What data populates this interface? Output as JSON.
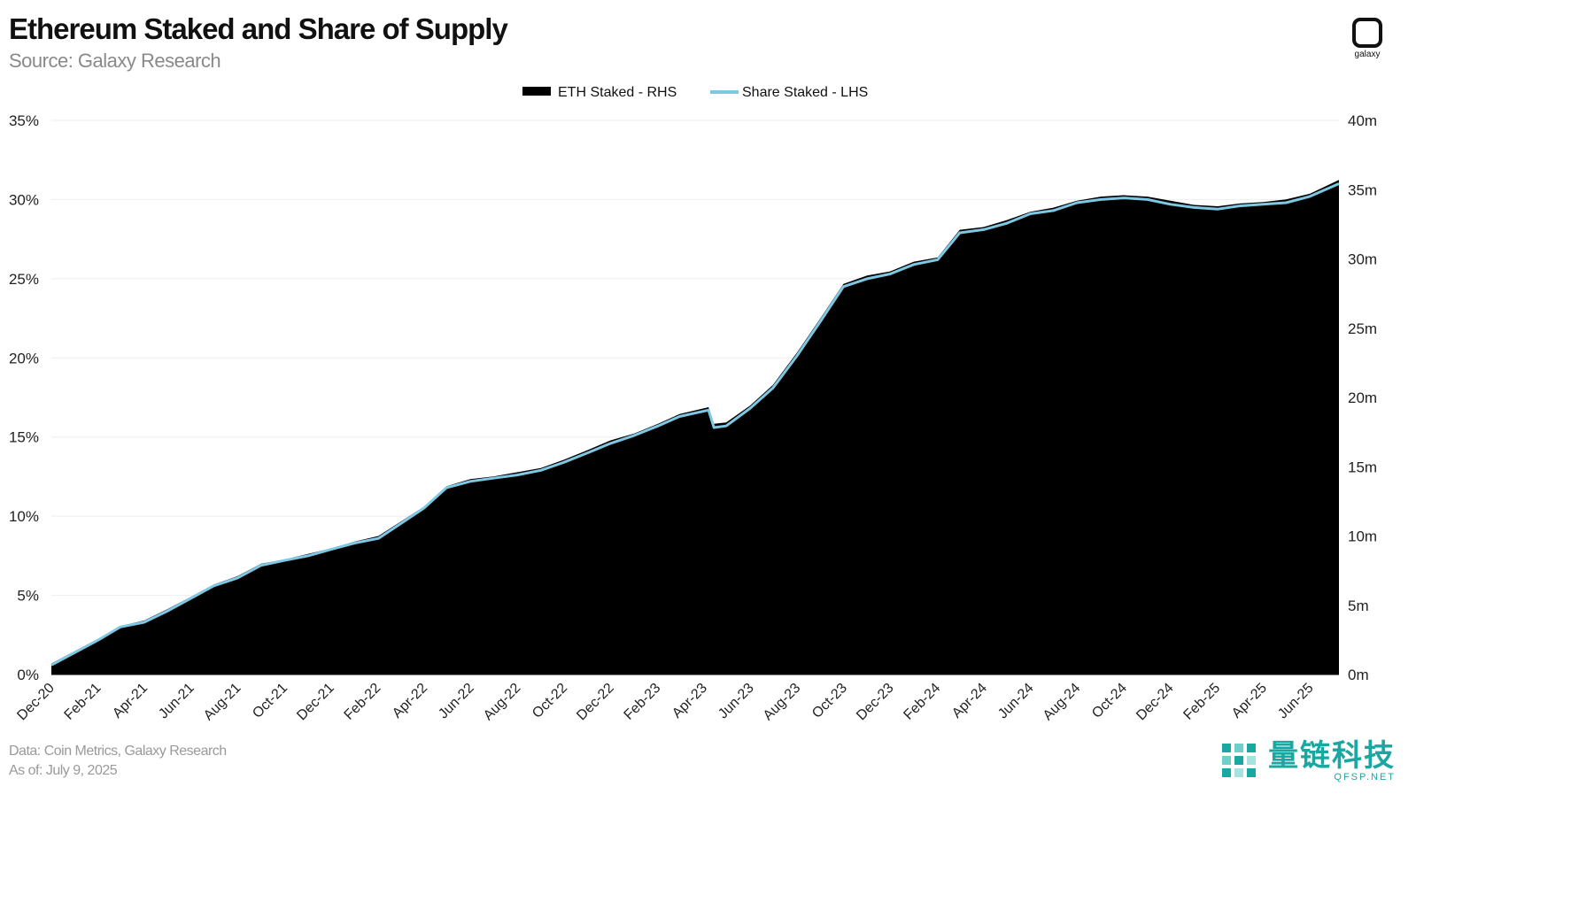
{
  "header": {
    "title": "Ethereum Staked and Share of Supply",
    "subtitle": "Source: Galaxy Research"
  },
  "logo": {
    "text": "galaxy"
  },
  "footer": {
    "data_source": "Data: Coin Metrics, Galaxy Research",
    "as_of": "As of: July 9, 2025"
  },
  "watermark": {
    "cn": "量链科技",
    "en": "QFSP.NET"
  },
  "chart_data": {
    "type": "area",
    "title": "Ethereum Staked and Share of Supply",
    "subtitle": "Source: Galaxy Research",
    "legend": {
      "placement": "top-center",
      "entries": [
        "ETH Staked - RHS",
        "Share Staked - LHS"
      ]
    },
    "grid": true,
    "x_tick_labels": [
      "Dec-20",
      "Feb-21",
      "Apr-21",
      "Jun-21",
      "Aug-21",
      "Oct-21",
      "Dec-21",
      "Feb-22",
      "Apr-22",
      "Jun-22",
      "Aug-22",
      "Oct-22",
      "Dec-22",
      "Feb-23",
      "Apr-23",
      "Jun-23",
      "Aug-23",
      "Oct-23",
      "Dec-23",
      "Feb-24",
      "Apr-24",
      "Jun-24",
      "Aug-24",
      "Oct-24",
      "Dec-24",
      "Feb-25",
      "Apr-25",
      "Jun-25"
    ],
    "y_left": {
      "ylim": [
        0,
        35
      ],
      "ticks": [
        "0%",
        "5%",
        "10%",
        "15%",
        "20%",
        "25%",
        "30%",
        "35%"
      ]
    },
    "y_right": {
      "ylim": [
        0,
        40
      ],
      "ticks": [
        "0m",
        "5m",
        "10m",
        "15m",
        "20m",
        "25m",
        "30m",
        "35m",
        "40m"
      ]
    },
    "x": [
      "2020-12-01",
      "2021-01-01",
      "2021-02-01",
      "2021-03-01",
      "2021-04-01",
      "2021-05-01",
      "2021-06-01",
      "2021-07-01",
      "2021-08-01",
      "2021-09-01",
      "2021-10-01",
      "2021-11-01",
      "2021-12-01",
      "2022-01-01",
      "2022-02-01",
      "2022-03-01",
      "2022-04-01",
      "2022-05-01",
      "2022-06-01",
      "2022-07-01",
      "2022-08-01",
      "2022-09-01",
      "2022-10-01",
      "2022-11-01",
      "2022-12-01",
      "2023-01-01",
      "2023-02-01",
      "2023-03-01",
      "2023-04-08",
      "2023-04-15",
      "2023-05-01",
      "2023-06-01",
      "2023-07-01",
      "2023-08-01",
      "2023-09-01",
      "2023-10-01",
      "2023-11-01",
      "2023-12-01",
      "2024-01-01",
      "2024-02-01",
      "2024-03-01",
      "2024-04-01",
      "2024-05-01",
      "2024-06-01",
      "2024-07-01",
      "2024-08-01",
      "2024-09-01",
      "2024-10-01",
      "2024-11-01",
      "2024-12-01",
      "2025-01-01",
      "2025-02-01",
      "2025-03-01",
      "2025-04-01",
      "2025-05-01",
      "2025-06-01",
      "2025-07-09"
    ],
    "series": [
      {
        "name": "ETH Staked - RHS",
        "axis": "right",
        "color": "#000000",
        "values": [
          0.8,
          1.7,
          2.6,
          3.5,
          3.9,
          4.7,
          5.6,
          6.5,
          7.1,
          8.0,
          8.3,
          8.7,
          9.1,
          9.6,
          10.0,
          11.0,
          12.1,
          13.6,
          14.1,
          14.3,
          14.6,
          14.9,
          15.5,
          16.2,
          16.9,
          17.4,
          18.1,
          18.8,
          19.3,
          18.1,
          18.2,
          19.4,
          20.9,
          23.2,
          25.7,
          28.2,
          28.8,
          29.1,
          29.8,
          30.1,
          32.1,
          32.3,
          32.8,
          33.4,
          33.7,
          34.2,
          34.5,
          34.6,
          34.5,
          34.2,
          33.9,
          33.8,
          34.0,
          34.1,
          34.3,
          34.7,
          35.7
        ]
      },
      {
        "name": "Share Staked - LHS",
        "axis": "left",
        "color": "#7ec8e3",
        "values": [
          0.6,
          1.4,
          2.2,
          3.0,
          3.3,
          4.0,
          4.8,
          5.6,
          6.1,
          6.9,
          7.2,
          7.5,
          7.9,
          8.3,
          8.6,
          9.5,
          10.5,
          11.8,
          12.2,
          12.4,
          12.6,
          12.9,
          13.4,
          14.0,
          14.6,
          15.1,
          15.7,
          16.3,
          16.7,
          15.6,
          15.7,
          16.8,
          18.1,
          20.1,
          22.3,
          24.5,
          25.0,
          25.3,
          25.9,
          26.2,
          27.9,
          28.1,
          28.5,
          29.1,
          29.3,
          29.8,
          30.0,
          30.1,
          30.0,
          29.7,
          29.5,
          29.4,
          29.6,
          29.7,
          29.8,
          30.2,
          31.0
        ]
      }
    ]
  }
}
